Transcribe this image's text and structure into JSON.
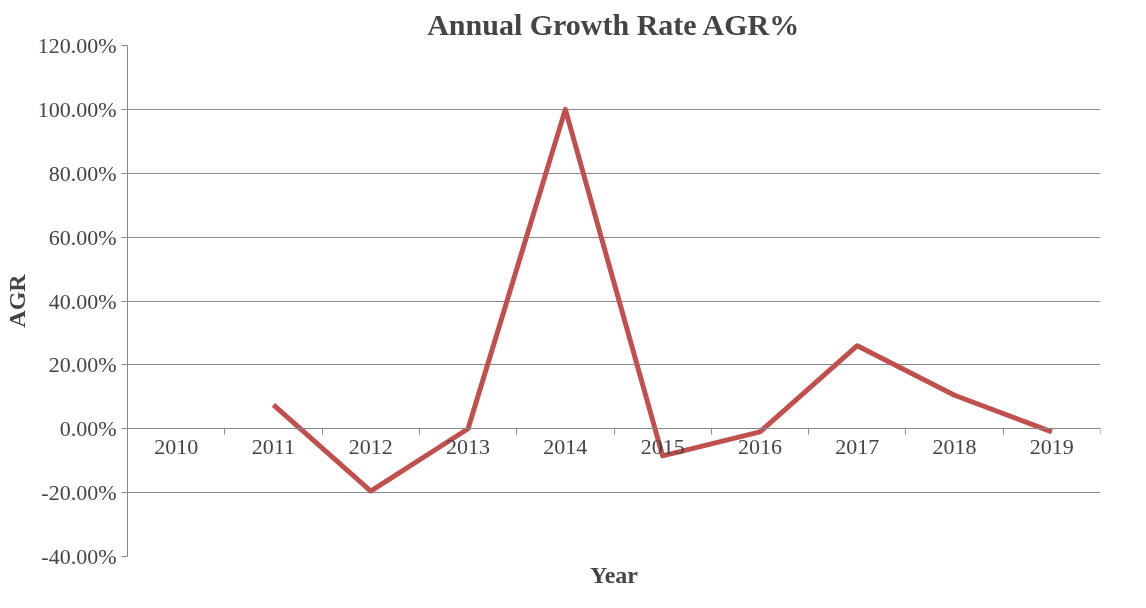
{
  "chart_data": {
    "type": "line",
    "title": "Annual Growth Rate AGR%",
    "xlabel": "Year",
    "ylabel": "AGR",
    "categories": [
      "2010",
      "2011",
      "2012",
      "2013",
      "2014",
      "2015",
      "2016",
      "2017",
      "2018",
      "2019"
    ],
    "series": [
      {
        "color": "#c0504d",
        "values": [
          null,
          7.5,
          -19.5,
          0,
          100,
          -8.5,
          -1,
          26,
          10.5,
          -1
        ]
      }
    ],
    "ylim": [
      -40,
      120
    ],
    "yticks": [
      {
        "value": -40,
        "label": "-40.00%"
      },
      {
        "value": -20,
        "label": "-20.00%"
      },
      {
        "value": 0,
        "label": "0.00%"
      },
      {
        "value": 20,
        "label": "20.00%"
      },
      {
        "value": 40,
        "label": "40.00%"
      },
      {
        "value": 60,
        "label": "60.00%"
      },
      {
        "value": 80,
        "label": "80.00%"
      },
      {
        "value": 100,
        "label": "100.00%"
      },
      {
        "value": 120,
        "label": "120.00%"
      }
    ],
    "grid": "y",
    "marker": "none",
    "line_style": "solid"
  }
}
